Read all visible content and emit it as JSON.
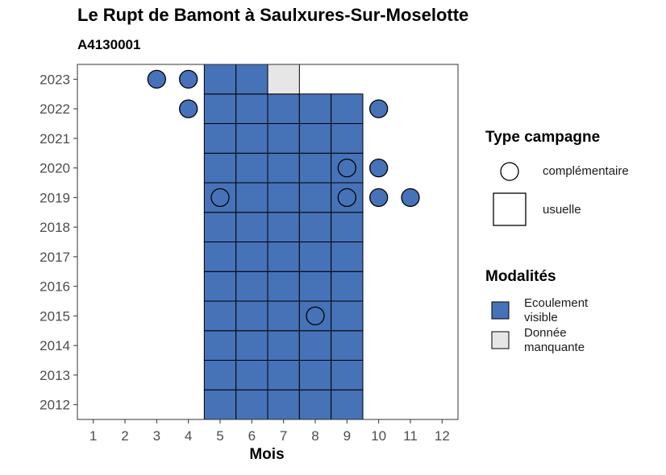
{
  "title": "Le Rupt de Bamont à Saulxures-Sur-Moselotte",
  "subtitle": "A4130001",
  "colors": {
    "ecoulement_visible": "#4672b8",
    "donnee_manquante": "#e6e6e6"
  },
  "chart_data": {
    "type": "heatmap",
    "xlabel": "Mois",
    "ylabel": "",
    "x_ticks": [
      1,
      2,
      3,
      4,
      5,
      6,
      7,
      8,
      9,
      10,
      11,
      12
    ],
    "y_ticks": [
      2012,
      2013,
      2014,
      2015,
      2016,
      2017,
      2018,
      2019,
      2020,
      2021,
      2022,
      2023
    ],
    "usuelle": [
      {
        "year": 2012,
        "months": [
          5,
          6,
          7,
          8,
          9
        ],
        "modalite": "Ecoulement visible"
      },
      {
        "year": 2013,
        "months": [
          5,
          6,
          7,
          8,
          9
        ],
        "modalite": "Ecoulement visible"
      },
      {
        "year": 2014,
        "months": [
          5,
          6,
          7,
          8,
          9
        ],
        "modalite": "Ecoulement visible"
      },
      {
        "year": 2015,
        "months": [
          5,
          6,
          7,
          8,
          9
        ],
        "modalite": "Ecoulement visible"
      },
      {
        "year": 2016,
        "months": [
          5,
          6,
          7,
          8,
          9
        ],
        "modalite": "Ecoulement visible"
      },
      {
        "year": 2017,
        "months": [
          5,
          6,
          7,
          8,
          9
        ],
        "modalite": "Ecoulement visible"
      },
      {
        "year": 2018,
        "months": [
          5,
          6,
          7,
          8,
          9
        ],
        "modalite": "Ecoulement visible"
      },
      {
        "year": 2019,
        "months": [
          5,
          6,
          7,
          8,
          9
        ],
        "modalite": "Ecoulement visible"
      },
      {
        "year": 2020,
        "months": [
          5,
          6,
          7,
          8,
          9
        ],
        "modalite": "Ecoulement visible"
      },
      {
        "year": 2021,
        "months": [
          5,
          6,
          7,
          8,
          9
        ],
        "modalite": "Ecoulement visible"
      },
      {
        "year": 2022,
        "months": [
          5,
          6,
          7,
          8,
          9
        ],
        "modalite": "Ecoulement visible"
      },
      {
        "year": 2023,
        "months": [
          5,
          6
        ],
        "modalite": "Ecoulement visible"
      },
      {
        "year": 2023,
        "months": [
          7
        ],
        "modalite": "Donnée manquante"
      }
    ],
    "complementaire": [
      {
        "year": 2023,
        "month": 3,
        "modalite": "Ecoulement visible"
      },
      {
        "year": 2023,
        "month": 4,
        "modalite": "Ecoulement visible"
      },
      {
        "year": 2022,
        "month": 4,
        "modalite": "Ecoulement visible"
      },
      {
        "year": 2022,
        "month": 10,
        "modalite": "Ecoulement visible"
      },
      {
        "year": 2020,
        "month": 9,
        "modalite": "Ecoulement visible"
      },
      {
        "year": 2020,
        "month": 10,
        "modalite": "Ecoulement visible"
      },
      {
        "year": 2019,
        "month": 5,
        "modalite": "Ecoulement visible"
      },
      {
        "year": 2019,
        "month": 9,
        "modalite": "Ecoulement visible"
      },
      {
        "year": 2019,
        "month": 10,
        "modalite": "Ecoulement visible"
      },
      {
        "year": 2019,
        "month": 11,
        "modalite": "Ecoulement visible"
      },
      {
        "year": 2015,
        "month": 8,
        "modalite": "Ecoulement visible"
      }
    ],
    "legend": {
      "type_title": "Type campagne",
      "type_items": [
        "complémentaire",
        "usuelle"
      ],
      "modalites_title": "Modalités",
      "modalites_items": [
        {
          "line1": "Ecoulement",
          "line2": "visible"
        },
        {
          "line1": "Donnée",
          "line2": "manquante"
        }
      ],
      "position": "right"
    },
    "xlim": [
      0.5,
      12.5
    ],
    "ylim": [
      2011.5,
      2023.5
    ],
    "grid": false
  }
}
